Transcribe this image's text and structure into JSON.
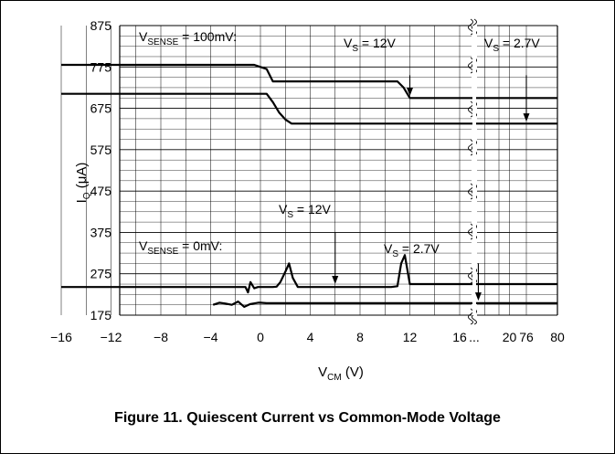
{
  "chart_data": {
    "type": "line",
    "title": "",
    "caption": "Figure 11. Quiescent Current vs Common-Mode Voltage",
    "xlabel": {
      "main": "V",
      "sub": "CM",
      "unit": " (V)"
    },
    "ylabel": {
      "main": "I",
      "sub": "Q",
      "unit": " (μA)"
    },
    "ylim": [
      175,
      875
    ],
    "y_ticks": [
      175,
      275,
      375,
      475,
      575,
      675,
      775,
      875
    ],
    "x_ticks": [
      "−16",
      "−12",
      "−8",
      "−4",
      "0",
      "4",
      "8",
      "12",
      "16",
      "20",
      "...",
      "76",
      "80"
    ],
    "x_tick_values": [
      -16,
      -12,
      -8,
      -4,
      0,
      4,
      8,
      12,
      16,
      20,
      null,
      76,
      80
    ],
    "x_axis_break": "between 20 and 76",
    "grid": true,
    "groups": [
      {
        "label": {
          "main": "V",
          "sub": "SENSE",
          "rest": " = 100mV:"
        },
        "series": [
          {
            "name": "VS = 12V",
            "x": [
              -16,
              -0.5,
              0,
              0.5,
              1,
              11,
              11.5,
              12,
              20,
              76,
              80
            ],
            "y": [
              780,
              780,
              775,
              770,
              740,
              740,
              725,
              700,
              700,
              700,
              700
            ]
          },
          {
            "name": "VS = 2.7V",
            "x": [
              -16,
              0.5,
              1,
              1.5,
              2,
              2.5,
              20,
              76,
              80
            ],
            "y": [
              710,
              710,
              690,
              665,
              648,
              638,
              638,
              638,
              638
            ]
          }
        ]
      },
      {
        "label": {
          "main": "V",
          "sub": "SENSE",
          "rest": " = 0mV:"
        },
        "series": [
          {
            "name": "VS = 12V",
            "x": [
              -16,
              -1.2,
              -1,
              -0.8,
              -0.5,
              -0.2,
              0,
              0.5,
              1,
              1.3,
              1.6,
              2,
              2.3,
              2.6,
              3,
              6,
              10.5,
              11,
              11.3,
              11.6,
              12,
              20,
              76,
              80
            ],
            "y": [
              243,
              243,
              230,
              255,
              240,
              243,
              243,
              243,
              243,
              244,
              255,
              280,
              300,
              265,
              243,
              243,
              243,
              245,
              300,
              320,
              250,
              250,
              250,
              250
            ]
          },
          {
            "name": "VS = 2.7V",
            "x": [
              -3.8,
              -3.3,
              -2.8,
              -2.3,
              -1.8,
              -1.3,
              -0.8,
              -0.2,
              0,
              0.5,
              1,
              1.5,
              2,
              20,
              76,
              80
            ],
            "y": [
              200,
              205,
              203,
              200,
              208,
              195,
              202,
              205,
              205,
              204,
              204,
              204,
              204,
              204,
              204,
              204
            ]
          }
        ]
      }
    ],
    "annotations": [
      {
        "label": {
          "main": "V",
          "sub": "S",
          "rest": " = 12V"
        },
        "arrow_x": 12,
        "arrow_from_y": 755,
        "arrow_to_y": 705
      },
      {
        "label": {
          "main": "V",
          "sub": "S",
          "rest": " = 2.7V"
        },
        "arrow_x": 76,
        "arrow_from_y": 755,
        "arrow_to_y": 643
      },
      {
        "label": {
          "main": "V",
          "sub": "S",
          "rest": " = 12V"
        },
        "arrow_x": 6,
        "arrow_from_y": 375,
        "arrow_to_y": 250
      },
      {
        "label": {
          "main": "V",
          "sub": "S",
          "rest": " = 2.7V"
        },
        "arrow_x": 17.5,
        "arrow_from_y": 300,
        "arrow_to_y": 210
      }
    ]
  }
}
